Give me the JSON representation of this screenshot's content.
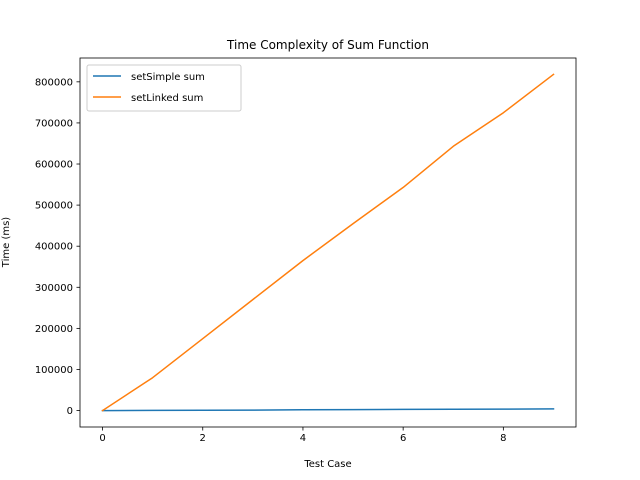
{
  "chart_data": {
    "type": "line",
    "title": "Time Complexity of Sum Function",
    "xlabel": "Test Case",
    "ylabel": "Time (ms)",
    "xlim": [
      -0.45,
      9.45
    ],
    "ylim": [
      -40000,
      858000
    ],
    "x_ticks": [
      0,
      2,
      4,
      6,
      8
    ],
    "x_tick_labels": [
      "0",
      "2",
      "4",
      "6",
      "8"
    ],
    "y_ticks": [
      0,
      100000,
      200000,
      300000,
      400000,
      500000,
      600000,
      700000,
      800000
    ],
    "y_tick_labels": [
      "0",
      "100000",
      "200000",
      "300000",
      "400000",
      "500000",
      "600000",
      "700000",
      "800000"
    ],
    "grid": false,
    "legend_position": "top-left",
    "x": [
      0,
      1,
      2,
      3,
      4,
      5,
      6,
      7,
      8,
      9
    ],
    "series": [
      {
        "name": "setSimple sum",
        "color": "#1f77b4",
        "values": [
          0,
          400,
          800,
          1200,
          1800,
          2300,
          2800,
          3200,
          3600,
          4000
        ]
      },
      {
        "name": "setLinked sum",
        "color": "#ff7f0e",
        "values": [
          0,
          80000,
          175000,
          270000,
          365000,
          455000,
          543000,
          643000,
          725000,
          818000
        ]
      }
    ]
  }
}
